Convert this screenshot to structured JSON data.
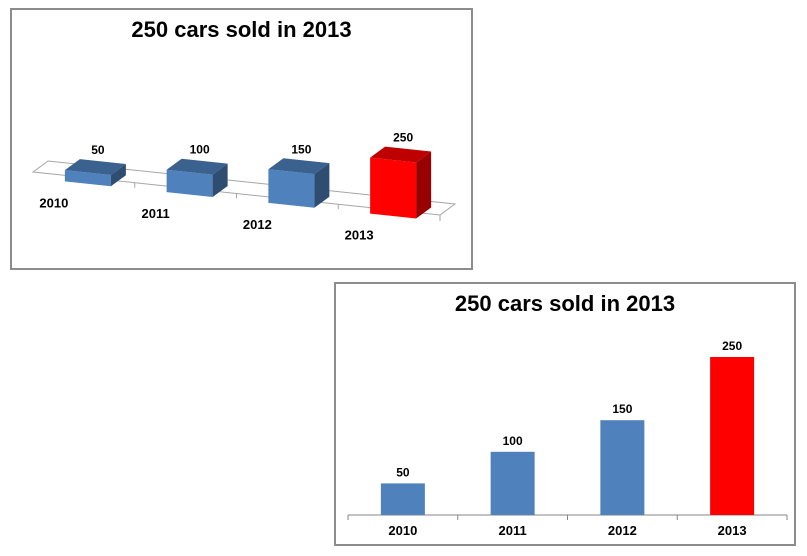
{
  "chart_data": [
    {
      "type": "bar",
      "style": "3d",
      "title": "250 cars sold in 2013",
      "categories": [
        "2010",
        "2011",
        "2012",
        "2013"
      ],
      "values": [
        50,
        100,
        150,
        250
      ],
      "data_labels": [
        "50",
        "100",
        "150",
        "250"
      ],
      "xlabel": "",
      "ylabel": "",
      "ylim": [
        0,
        250
      ],
      "grid": false,
      "legend": "none",
      "colors": [
        "#4f81bd",
        "#4f81bd",
        "#4f81bd",
        "#ff0000"
      ]
    },
    {
      "type": "bar",
      "style": "2d",
      "title": "250 cars sold in 2013",
      "categories": [
        "2010",
        "2011",
        "2012",
        "2013"
      ],
      "values": [
        50,
        100,
        150,
        250
      ],
      "data_labels": [
        "50",
        "100",
        "150",
        "250"
      ],
      "xlabel": "",
      "ylabel": "",
      "ylim": [
        0,
        250
      ],
      "grid": false,
      "legend": "none",
      "colors": [
        "#4f81bd",
        "#4f81bd",
        "#4f81bd",
        "#ff0000"
      ]
    }
  ]
}
